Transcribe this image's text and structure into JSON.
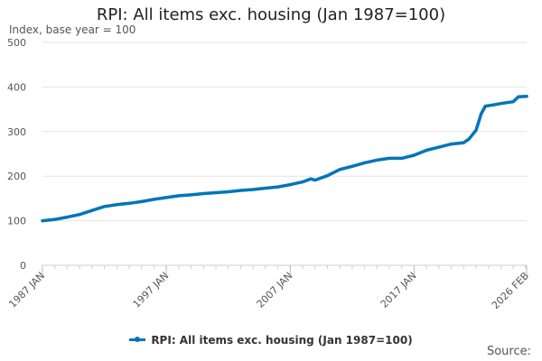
{
  "chart_data": {
    "type": "line",
    "title": "RPI: All items exc. housing (Jan 1987=100)",
    "subtitle": "Index, base year = 100",
    "ylim": [
      0,
      500
    ],
    "yticks": [
      0,
      100,
      200,
      300,
      400,
      500
    ],
    "xlim": [
      "1987-01",
      "2026-02"
    ],
    "xtick_labels": [
      "1987 JAN",
      "1997 JAN",
      "2007 JAN",
      "2017 JAN",
      "2026 FEB"
    ],
    "xtick_dates": [
      "1987-01",
      "1997-01",
      "2007-01",
      "2017-01",
      "2026-02"
    ],
    "grid": "horizontal",
    "legend_position": "bottom",
    "color": "#0075b9",
    "series": [
      {
        "name": "RPI: All items exc. housing (Jan 1987=100)",
        "x": [
          "1987-01",
          "1988-01",
          "1989-01",
          "1990-01",
          "1991-01",
          "1992-01",
          "1993-01",
          "1994-01",
          "1995-01",
          "1996-01",
          "1997-01",
          "1998-01",
          "1999-01",
          "2000-01",
          "2001-01",
          "2002-01",
          "2003-01",
          "2004-01",
          "2005-01",
          "2006-01",
          "2007-01",
          "2008-01",
          "2008-09",
          "2009-01",
          "2010-01",
          "2011-01",
          "2012-01",
          "2013-01",
          "2014-01",
          "2015-01",
          "2016-01",
          "2017-01",
          "2018-01",
          "2019-01",
          "2020-01",
          "2021-01",
          "2021-06",
          "2022-01",
          "2022-06",
          "2022-10",
          "2023-06",
          "2024-01",
          "2025-01",
          "2025-06",
          "2026-02"
        ],
        "y": [
          100,
          103,
          108,
          114,
          123,
          132,
          136,
          139,
          143,
          148,
          152,
          156,
          158,
          161,
          163,
          165,
          168,
          170,
          173,
          176,
          181,
          187,
          194,
          191,
          201,
          215,
          222,
          230,
          236,
          240,
          240,
          247,
          258,
          265,
          272,
          275,
          283,
          303,
          340,
          357,
          360,
          363,
          367,
          378,
          379
        ]
      }
    ]
  },
  "source_label": "Source:"
}
